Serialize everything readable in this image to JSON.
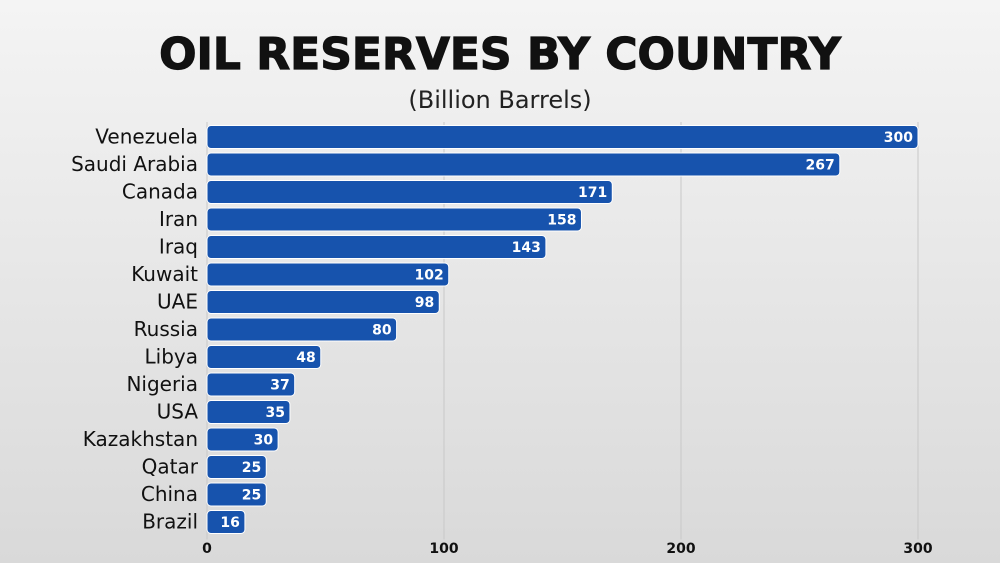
{
  "chart_data": {
    "type": "bar",
    "orientation": "horizontal",
    "title": "OIL RESERVES BY COUNTRY",
    "subtitle": "(Billion Barrels)",
    "categories": [
      "Venezuela",
      "Saudi Arabia",
      "Canada",
      "Iran",
      "Iraq",
      "Kuwait",
      "UAE",
      "Russia",
      "Libya",
      "Nigeria",
      "USA",
      "Kazakhstan",
      "Qatar",
      "China",
      "Brazil"
    ],
    "values": [
      300,
      267,
      171,
      158,
      143,
      102,
      98,
      80,
      48,
      37,
      35,
      30,
      25,
      25,
      16
    ],
    "color": "#1753ad",
    "xlim": [
      0,
      300
    ],
    "xticks": [
      0,
      100,
      200,
      300
    ],
    "grid": true
  }
}
